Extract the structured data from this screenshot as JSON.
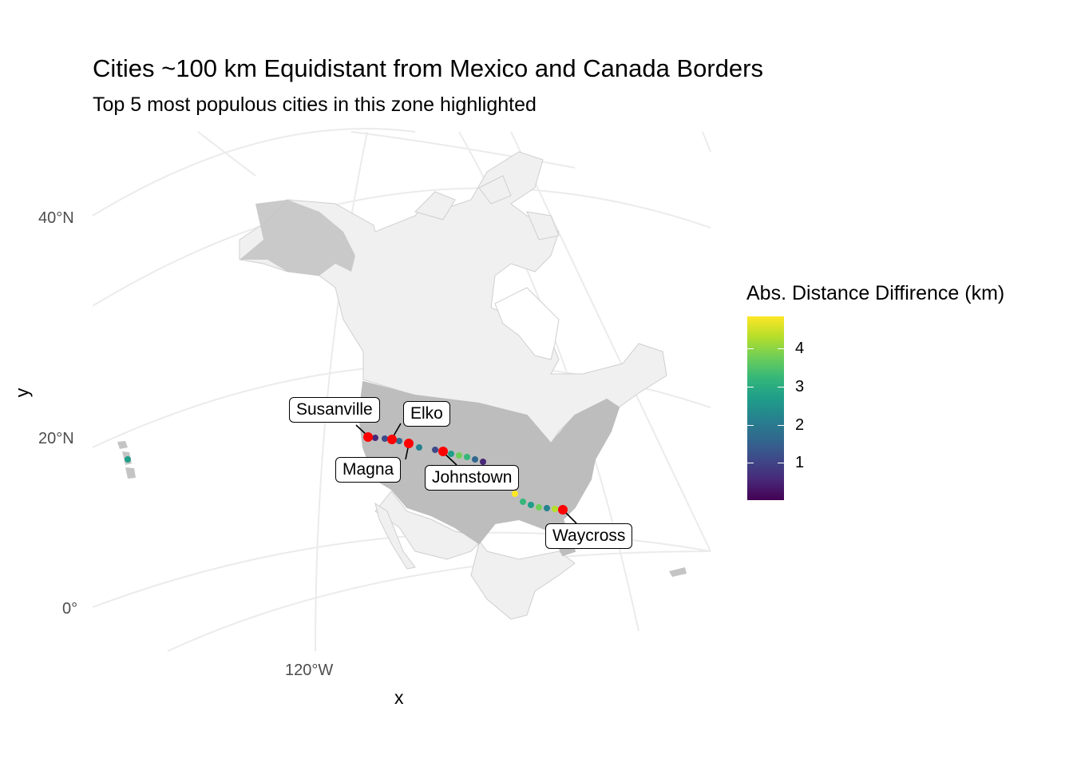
{
  "title": "Cities ~100 km Equidistant from Mexico and Canada Borders",
  "subtitle": "Top 5 most populous cities in this zone highlighted",
  "axes": {
    "x_label": "x",
    "y_label": "y",
    "lat_ticks": [
      "40°N",
      "20°N",
      "0°"
    ],
    "lon_ticks": [
      "120°W"
    ]
  },
  "legend": {
    "title": "Abs. Distance Diffirence (km)",
    "ticks": [
      "1",
      "2",
      "3",
      "4"
    ],
    "colors": [
      "#440154",
      "#31688e",
      "#35b779",
      "#fde725"
    ]
  },
  "cities": [
    {
      "name": "Susanville",
      "color": "#ff0000"
    },
    {
      "name": "Elko",
      "color": "#ff0000"
    },
    {
      "name": "Magna",
      "color": "#ff0000"
    },
    {
      "name": "Johnstown",
      "color": "#ff0000"
    },
    {
      "name": "Waycross",
      "color": "#ff0000"
    }
  ],
  "map_colors": {
    "land": "#f0f0f0",
    "us_cities": "#bdbdbd",
    "border": "#c8c8c8",
    "graticule": "#ebebeb"
  }
}
